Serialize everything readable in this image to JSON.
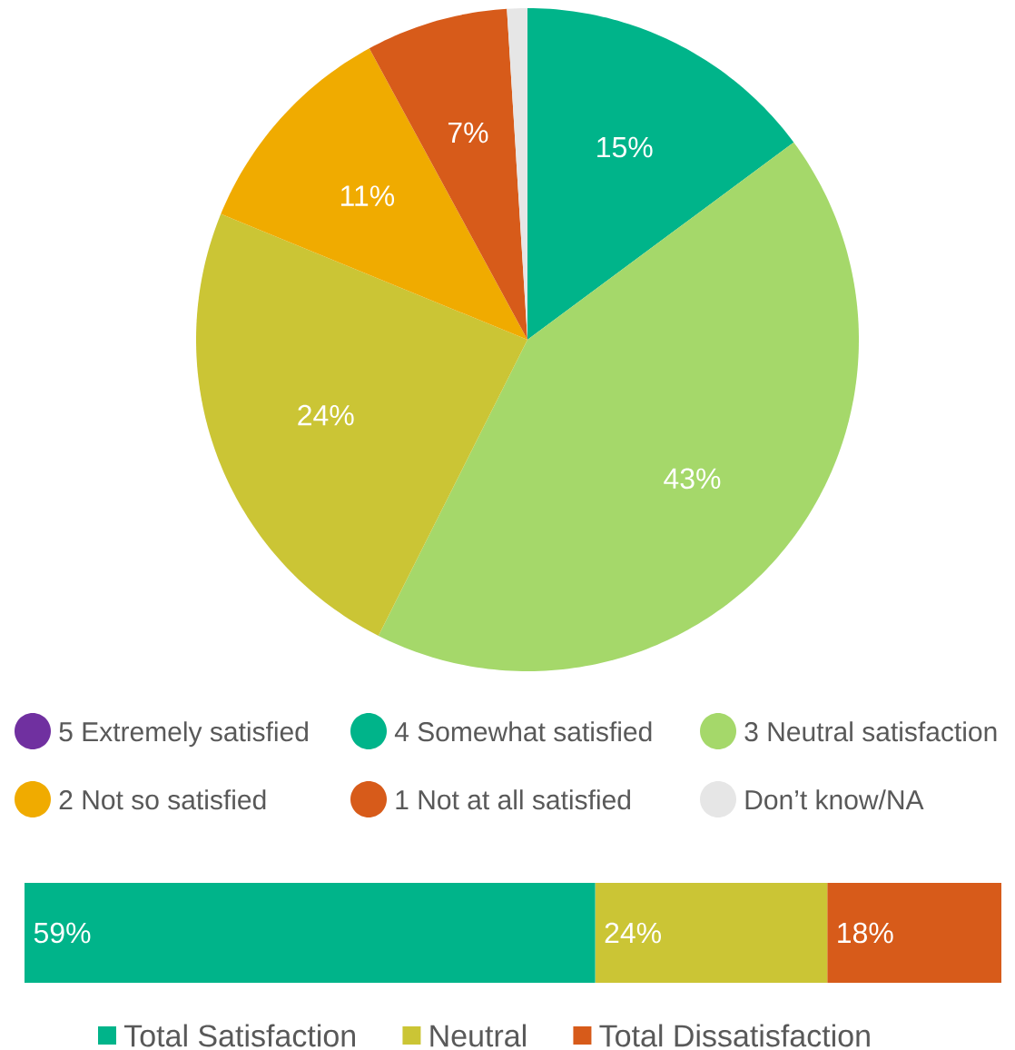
{
  "chart_data": [
    {
      "type": "pie",
      "categories": [
        "5 Extremely satisfied",
        "4 Somewhat satisfied",
        "3 Neutral satisfaction",
        null,
        "2 Not so satisfied",
        "1 Not at all satisfied",
        "Don’t know/NA"
      ],
      "values": [
        0,
        15,
        43,
        24,
        11,
        7,
        1
      ],
      "colors": [
        "#7030a0",
        "#00b48a",
        "#a5d86a",
        "#cbc535",
        "#f0ab00",
        "#d75b1a",
        "#e6e6e6"
      ],
      "value_labels": [
        null,
        "15%",
        "43%",
        "24%",
        "11%",
        "7%",
        null
      ],
      "legend": "bottom"
    },
    {
      "type": "bar",
      "orientation": "horizontal",
      "stacked": true,
      "categories": [
        null
      ],
      "legend": "bottom",
      "series": [
        {
          "name": "Total Satisfaction",
          "color": "#00b48a",
          "values": [
            59
          ],
          "value_labels": [
            "59%"
          ]
        },
        {
          "name": "Neutral",
          "color": "#cbc535",
          "values": [
            24
          ],
          "value_labels": [
            "24%"
          ]
        },
        {
          "name": "Total Dissatisfaction",
          "color": "#d75b1a",
          "values": [
            18
          ],
          "value_labels": [
            "18%"
          ]
        }
      ]
    }
  ]
}
